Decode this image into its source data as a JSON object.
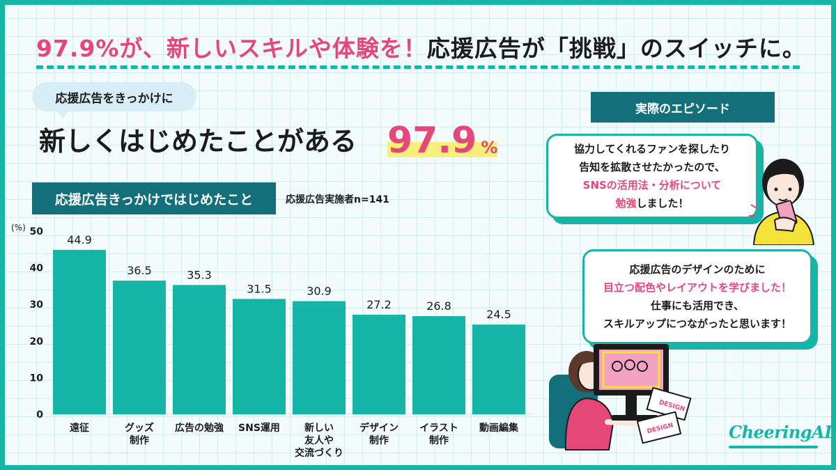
{
  "headline": {
    "pink": "97.9%が、新しいスキルや体験を！",
    "dark": "応援広告が「挑戦」のスイッチに。"
  },
  "bubble": "応援広告をきっかけに",
  "big_statement": "新しくはじめたことがある",
  "highlight": {
    "value": "97.9",
    "unit": "%"
  },
  "chart_title": "応援広告きっかけではじめたこと",
  "sample_note": "応援広告実施者n=141",
  "episodes": {
    "header": "実際のエピソード",
    "card1": {
      "line1": "協力してくれるファンを探したり",
      "line2": "告知を拡散させたかったので、",
      "line3_highlight": "SNSの活用法・分析について",
      "line4_highlight": "勉強",
      "line4_rest": "しました！"
    },
    "card2": {
      "line1": "応援広告のデザインのために",
      "line2_highlight": "目立つ配色やレイアウトを学びました！",
      "line3": "仕事にも活用でき、",
      "line4": "スキルアップにつながったと思います！"
    },
    "illustration_labels": [
      "DESIGN",
      "DESIGN"
    ]
  },
  "logo": "CheeringAD",
  "colors": {
    "teal": "#17b5a8",
    "dark_teal": "#136f79",
    "pink": "#e5477a",
    "highlight_yellow": "#f7ef7a"
  },
  "chart_data": {
    "type": "bar",
    "categories": [
      "遠征",
      "グッズ\n制作",
      "広告の勉強",
      "SNS運用",
      "新しい\n友人や\n交流づくり",
      "デザイン\n制作",
      "イラスト\n制作",
      "動画編集"
    ],
    "values": [
      44.9,
      36.5,
      35.3,
      31.5,
      30.9,
      27.2,
      26.8,
      24.5
    ],
    "ylabel": "(%)",
    "ylim": [
      0,
      50
    ],
    "yticks": [
      0,
      10,
      20,
      30,
      40,
      50
    ],
    "bar_color": "#17b5a8",
    "data_labels": true,
    "grid": false
  }
}
